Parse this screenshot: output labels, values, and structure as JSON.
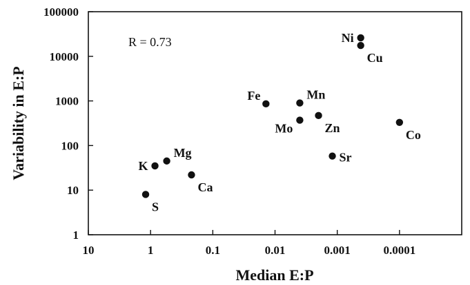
{
  "chart_data": {
    "type": "scatter",
    "title": "",
    "xlabel": "Median E:P",
    "ylabel": "Variability in E:P",
    "x_scale": "log",
    "x_reversed": true,
    "y_scale": "log",
    "xlim": [
      10,
      1e-05
    ],
    "ylim": [
      1,
      100000
    ],
    "x_ticks": [
      {
        "value": 10,
        "label": "10"
      },
      {
        "value": 1,
        "label": "1"
      },
      {
        "value": 0.1,
        "label": "0.1"
      },
      {
        "value": 0.01,
        "label": "0.01"
      },
      {
        "value": 0.001,
        "label": "0.001"
      },
      {
        "value": 0.0001,
        "label": "0.0001"
      }
    ],
    "y_ticks": [
      {
        "value": 1,
        "label": "1"
      },
      {
        "value": 10,
        "label": "10"
      },
      {
        "value": 100,
        "label": "100"
      },
      {
        "value": 1000,
        "label": "1000"
      },
      {
        "value": 10000,
        "label": "10000"
      },
      {
        "value": 100000,
        "label": "100000"
      }
    ],
    "annotation": "R = 0.73",
    "grid": false,
    "points": [
      {
        "label": "S",
        "x": 1.2,
        "y": 8,
        "label_pos": "below-right"
      },
      {
        "label": "K",
        "x": 0.85,
        "y": 35,
        "label_pos": "left"
      },
      {
        "label": "Mg",
        "x": 0.55,
        "y": 45,
        "label_pos": "above-right"
      },
      {
        "label": "Ca",
        "x": 0.22,
        "y": 22,
        "label_pos": "below-right"
      },
      {
        "label": "Fe",
        "x": 0.014,
        "y": 860,
        "label_pos": "above-left"
      },
      {
        "label": "Mn",
        "x": 0.004,
        "y": 900,
        "label_pos": "above-right"
      },
      {
        "label": "Mo",
        "x": 0.004,
        "y": 370,
        "label_pos": "below-left"
      },
      {
        "label": "Zn",
        "x": 0.002,
        "y": 470,
        "label_pos": "below-right"
      },
      {
        "label": "Sr",
        "x": 0.0012,
        "y": 58,
        "label_pos": "right"
      },
      {
        "label": "Ni",
        "x": 0.00042,
        "y": 26000,
        "label_pos": "left"
      },
      {
        "label": "Cu",
        "x": 0.00042,
        "y": 17500,
        "label_pos": "below-right"
      },
      {
        "label": "Co",
        "x": 0.0001,
        "y": 330,
        "label_pos": "below-right"
      }
    ]
  }
}
